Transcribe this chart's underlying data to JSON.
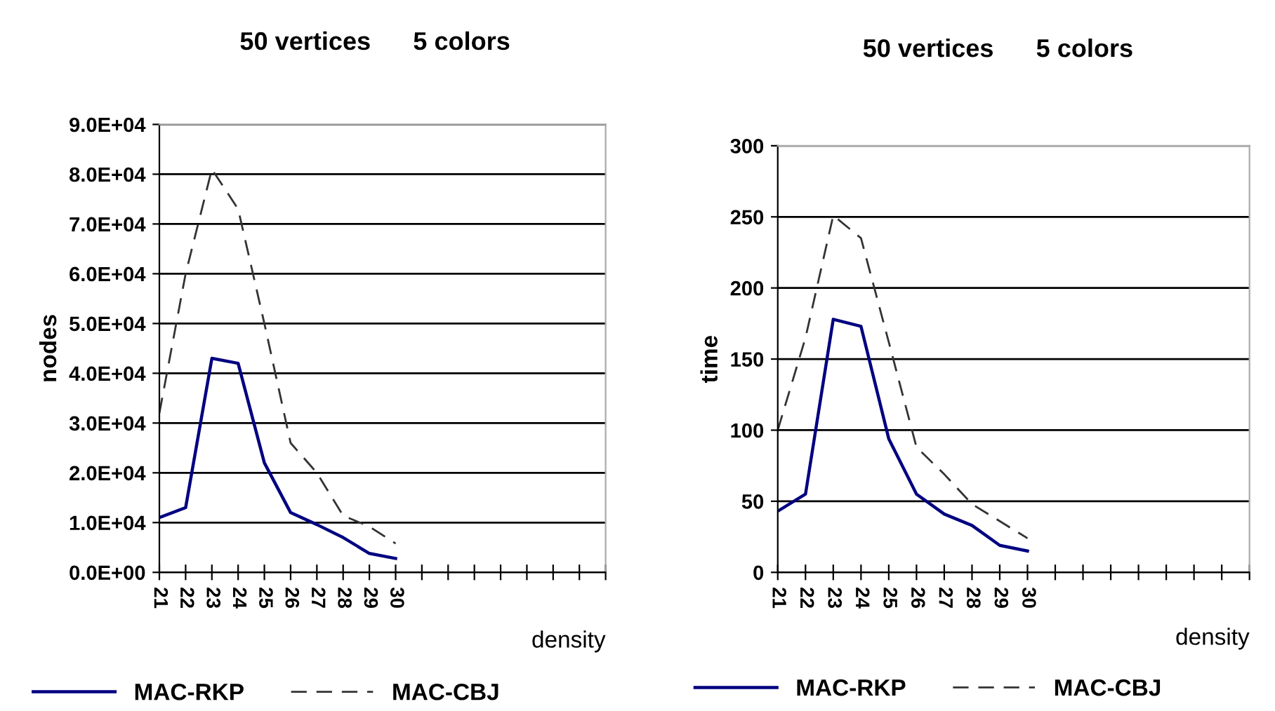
{
  "chart_data": [
    {
      "type": "line",
      "title": "50 vertices      5 colors",
      "xlabel": "density",
      "ylabel": "nodes",
      "categories": [
        "21",
        "22",
        "23",
        "24",
        "25",
        "26",
        "27",
        "28",
        "29",
        "30",
        null,
        null,
        null,
        null,
        null,
        null,
        null,
        null
      ],
      "series": [
        {
          "name": "MAC-RKP",
          "color": "#000080",
          "line_style": "solid",
          "values": [
            11000,
            13000,
            43000,
            42000,
            22000,
            12000,
            9600,
            7000,
            3800,
            2800,
            null,
            null,
            null,
            null,
            null,
            null,
            null,
            null
          ]
        },
        {
          "name": "MAC-CBJ",
          "color": "#333333",
          "line_style": "dashed",
          "values": [
            32000,
            60000,
            81000,
            73000,
            50000,
            26000,
            20000,
            11400,
            9200,
            5800,
            null,
            null,
            null,
            null,
            null,
            null,
            null,
            null
          ]
        }
      ],
      "ylim": [
        0,
        90000
      ],
      "yticks": [
        {
          "value": 0,
          "label": "0.0E+00"
        },
        {
          "value": 10000,
          "label": "1.0E+04"
        },
        {
          "value": 20000,
          "label": "2.0E+04"
        },
        {
          "value": 30000,
          "label": "3.0E+04"
        },
        {
          "value": 40000,
          "label": "4.0E+04"
        },
        {
          "value": 50000,
          "label": "5.0E+04"
        },
        {
          "value": 60000,
          "label": "6.0E+04"
        },
        {
          "value": 70000,
          "label": "7.0E+04"
        },
        {
          "value": 80000,
          "label": "8.0E+04"
        },
        {
          "value": 90000,
          "label": "9.0E+04"
        }
      ],
      "grid": "y",
      "legend": "bottom"
    },
    {
      "type": "line",
      "title": "50 vertices      5 colors",
      "xlabel": "density",
      "ylabel": "time",
      "categories": [
        "21",
        "22",
        "23",
        "24",
        "25",
        "26",
        "27",
        "28",
        "29",
        "30",
        null,
        null,
        null,
        null,
        null,
        null,
        null,
        null
      ],
      "series": [
        {
          "name": "MAC-RKP",
          "color": "#000080",
          "line_style": "solid",
          "values": [
            43,
            55,
            178,
            173,
            94,
            55,
            41,
            33,
            19,
            15,
            null,
            null,
            null,
            null,
            null,
            null,
            null,
            null
          ]
        },
        {
          "name": "MAC-CBJ",
          "color": "#333333",
          "line_style": "dashed",
          "values": [
            100,
            165,
            251,
            235,
            162,
            88,
            69,
            48,
            36,
            24,
            null,
            null,
            null,
            null,
            null,
            null,
            null,
            null
          ]
        }
      ],
      "ylim": [
        0,
        300
      ],
      "yticks": [
        0,
        50,
        100,
        150,
        200,
        250,
        300
      ],
      "grid": "y",
      "legend": "bottom"
    }
  ]
}
